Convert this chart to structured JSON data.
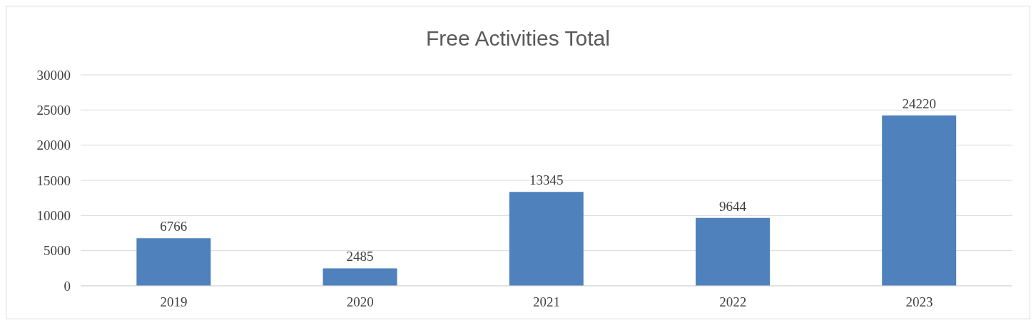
{
  "chart_data": {
    "type": "bar",
    "title": "Free Activities Total",
    "categories": [
      "2019",
      "2020",
      "2021",
      "2022",
      "2023"
    ],
    "values": [
      6766,
      2485,
      13345,
      9644,
      24220
    ],
    "color": "#4f81bd",
    "ylim": [
      0,
      30000
    ],
    "yticks": [
      0,
      5000,
      10000,
      15000,
      20000,
      25000,
      30000
    ],
    "grid": "y",
    "data_labels": true,
    "legend": false
  }
}
